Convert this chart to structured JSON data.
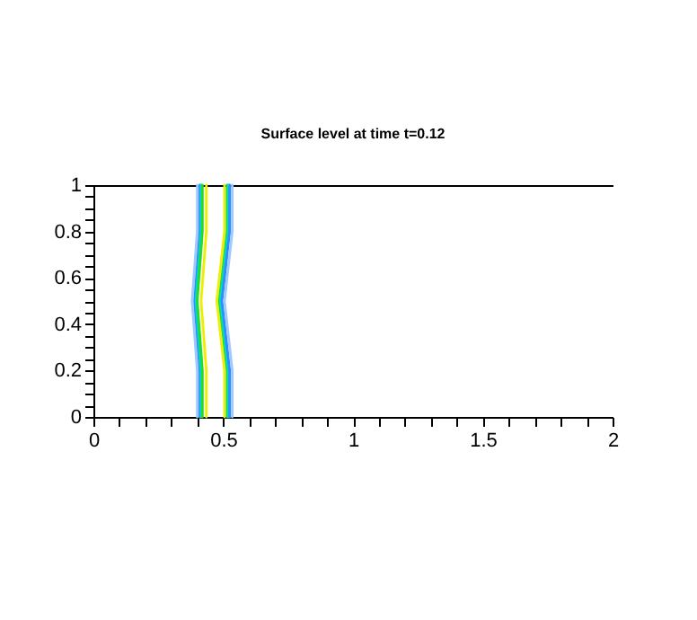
{
  "chart_data": {
    "type": "line",
    "title": "Surface level at time t=0.12",
    "grid": false,
    "legend": false,
    "marker": "none",
    "line_style": "solid",
    "xlim": [
      0,
      2
    ],
    "ylim": [
      0,
      1
    ],
    "xticks": [
      0,
      {
        "value": 0.1,
        "label": null
      },
      {
        "value": 0.2,
        "label": null
      },
      {
        "value": 0.3,
        "label": null
      },
      {
        "value": 0.4,
        "label": null
      },
      0.5,
      {
        "value": 0.6,
        "label": null
      },
      {
        "value": 0.7,
        "label": null
      },
      {
        "value": 0.8,
        "label": null
      },
      {
        "value": 0.9,
        "label": null
      },
      1,
      {
        "value": 1.1,
        "label": null
      },
      {
        "value": 1.2,
        "label": null
      },
      {
        "value": 1.3,
        "label": null
      },
      {
        "value": 1.4,
        "label": null
      },
      1.5,
      {
        "value": 1.6,
        "label": null
      },
      {
        "value": 1.7,
        "label": null
      },
      {
        "value": 1.8,
        "label": null
      },
      {
        "value": 1.9,
        "label": null
      },
      2
    ],
    "yticks": [
      0,
      {
        "value": 0.05,
        "label": null
      },
      {
        "value": 0.1,
        "label": null
      },
      {
        "value": 0.15,
        "label": null
      },
      0.2,
      {
        "value": 0.25,
        "label": null
      },
      {
        "value": 0.3,
        "label": null
      },
      {
        "value": 0.35,
        "label": null
      },
      0.4,
      {
        "value": 0.45,
        "label": null
      },
      {
        "value": 0.5,
        "label": null
      },
      {
        "value": 0.55,
        "label": null
      },
      0.6,
      {
        "value": 0.65,
        "label": null
      },
      {
        "value": 0.7,
        "label": null
      },
      {
        "value": 0.75,
        "label": null
      },
      0.8,
      {
        "value": 0.85,
        "label": null
      },
      {
        "value": 0.9,
        "label": null
      },
      {
        "value": 0.95,
        "label": null
      },
      1
    ],
    "series": [
      {
        "color": "#9ec8ff",
        "x": [
          0.4,
          0.4,
          0.39,
          0.38,
          0.39,
          0.4,
          0.4
        ],
        "values": [
          0,
          0.2,
          0.35,
          0.5,
          0.65,
          0.8,
          1
        ]
      },
      {
        "color": "#2f8cff",
        "x": [
          0.41,
          0.41,
          0.4,
          0.39,
          0.4,
          0.41,
          0.41
        ],
        "values": [
          0,
          0.2,
          0.35,
          0.5,
          0.65,
          0.8,
          1
        ]
      },
      {
        "color": "#00d8d8",
        "x": [
          0.415,
          0.415,
          0.405,
          0.395,
          0.405,
          0.415,
          0.415
        ],
        "values": [
          0,
          0.2,
          0.35,
          0.5,
          0.65,
          0.8,
          1
        ]
      },
      {
        "color": "#22dd22",
        "x": [
          0.42,
          0.42,
          0.41,
          0.4,
          0.41,
          0.42,
          0.42
        ],
        "values": [
          0,
          0.2,
          0.35,
          0.5,
          0.65,
          0.8,
          1
        ]
      },
      {
        "color": "#eeee00",
        "x": [
          0.435,
          0.435,
          0.425,
          0.415,
          0.425,
          0.435,
          0.435
        ],
        "values": [
          0,
          0.2,
          0.35,
          0.5,
          0.65,
          0.8,
          1
        ]
      },
      {
        "color": "#eeee00",
        "x": [
          0.505,
          0.505,
          0.49,
          0.475,
          0.49,
          0.505,
          0.505
        ],
        "values": [
          0,
          0.2,
          0.35,
          0.5,
          0.65,
          0.8,
          1
        ]
      },
      {
        "color": "#22dd22",
        "x": [
          0.515,
          0.515,
          0.5,
          0.485,
          0.5,
          0.515,
          0.515
        ],
        "values": [
          0,
          0.2,
          0.35,
          0.5,
          0.65,
          0.8,
          1
        ]
      },
      {
        "color": "#00d8d8",
        "x": [
          0.52,
          0.52,
          0.505,
          0.49,
          0.505,
          0.52,
          0.52
        ],
        "values": [
          0,
          0.2,
          0.35,
          0.5,
          0.65,
          0.8,
          1
        ]
      },
      {
        "color": "#2f8cff",
        "x": [
          0.525,
          0.525,
          0.51,
          0.495,
          0.51,
          0.525,
          0.525
        ],
        "values": [
          0,
          0.2,
          0.35,
          0.5,
          0.65,
          0.8,
          1
        ]
      },
      {
        "color": "#9ec8ff",
        "x": [
          0.535,
          0.535,
          0.52,
          0.505,
          0.52,
          0.535,
          0.535
        ],
        "values": [
          0,
          0.2,
          0.35,
          0.5,
          0.65,
          0.8,
          1
        ]
      }
    ]
  }
}
